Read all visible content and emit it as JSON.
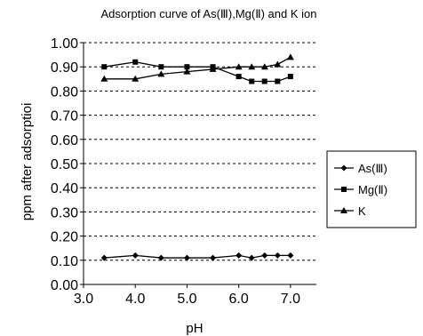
{
  "chart_data": {
    "type": "line",
    "title": "Adsorption curve of As(Ⅲ),Mg(Ⅱ) and K ion",
    "xlabel": "pH",
    "ylabel": "ppm after adsorptioi",
    "xlim": [
      3.0,
      7.5
    ],
    "ylim": [
      0.0,
      1.0
    ],
    "xticks": [
      "3.0",
      "4.0",
      "5.0",
      "6.0",
      "7.0"
    ],
    "xtick_values": [
      3.0,
      4.0,
      5.0,
      6.0,
      7.0
    ],
    "yticks": [
      "0.00",
      "0.10",
      "0.20",
      "0.30",
      "0.40",
      "0.50",
      "0.60",
      "0.70",
      "0.80",
      "0.90",
      "1.00"
    ],
    "ytick_values": [
      0.0,
      0.1,
      0.2,
      0.3,
      0.4,
      0.5,
      0.6,
      0.7,
      0.8,
      0.9,
      1.0
    ],
    "grid": "horizontal-dashed",
    "legend_position": "right",
    "series": [
      {
        "name": "As(Ⅲ)",
        "marker": "diamond",
        "x": [
          3.4,
          4.0,
          4.5,
          5.0,
          5.5,
          6.0,
          6.25,
          6.5,
          6.75,
          7.0
        ],
        "y": [
          0.11,
          0.12,
          0.11,
          0.11,
          0.11,
          0.12,
          0.11,
          0.12,
          0.12,
          0.12
        ]
      },
      {
        "name": "Mg(Ⅱ)",
        "marker": "square",
        "x": [
          3.4,
          4.0,
          4.5,
          5.0,
          5.5,
          6.0,
          6.25,
          6.5,
          6.75,
          7.0
        ],
        "y": [
          0.9,
          0.92,
          0.9,
          0.9,
          0.9,
          0.86,
          0.84,
          0.84,
          0.84,
          0.86
        ]
      },
      {
        "name": "K",
        "marker": "triangle",
        "x": [
          3.4,
          4.0,
          4.5,
          5.0,
          5.5,
          6.0,
          6.25,
          6.5,
          6.75,
          7.0
        ],
        "y": [
          0.85,
          0.85,
          0.87,
          0.88,
          0.89,
          0.9,
          0.9,
          0.9,
          0.91,
          0.94
        ]
      }
    ]
  }
}
